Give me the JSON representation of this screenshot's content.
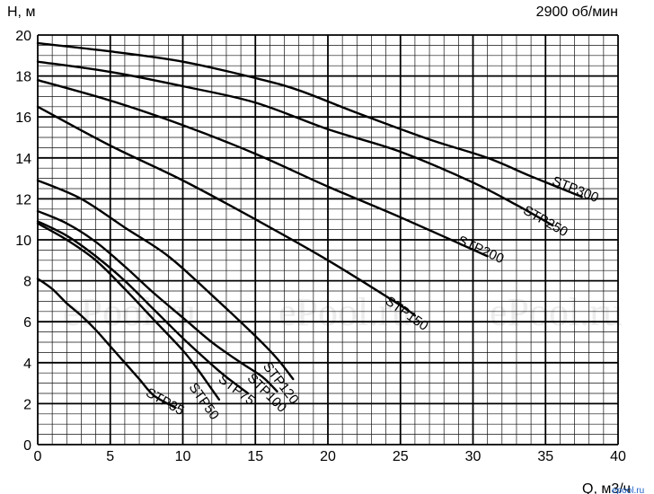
{
  "chart_data": {
    "type": "line",
    "title": "",
    "top_right_label": "2900 об/мин",
    "ylabel": "H, м",
    "xlabel": "Q, м3/ч",
    "xlim": [
      0,
      40
    ],
    "ylim": [
      0,
      20
    ],
    "x_ticks": [
      0,
      5,
      10,
      15,
      20,
      25,
      30,
      35,
      40
    ],
    "y_ticks": [
      0,
      2,
      4,
      6,
      8,
      10,
      12,
      14,
      16,
      18,
      20
    ],
    "grid": true,
    "legend": "none",
    "series": [
      {
        "name": "STP35",
        "x": [
          0,
          1,
          2,
          3,
          4,
          5,
          6,
          7,
          8,
          9.5
        ],
        "y": [
          8.1,
          7.6,
          6.9,
          6.3,
          5.6,
          4.8,
          4.0,
          3.2,
          2.4,
          1.8
        ]
      },
      {
        "name": "STP50",
        "x": [
          0,
          2,
          4,
          6,
          8,
          10,
          11,
          12,
          12.5
        ],
        "y": [
          10.8,
          10.0,
          9.0,
          7.6,
          6.1,
          4.6,
          3.7,
          2.7,
          2.2
        ]
      },
      {
        "name": "STP75",
        "x": [
          0,
          2,
          4,
          6,
          8,
          10,
          12,
          13,
          14.5
        ],
        "y": [
          10.9,
          10.2,
          9.2,
          8.0,
          6.6,
          5.2,
          3.9,
          3.3,
          2.5
        ]
      },
      {
        "name": "STP100",
        "x": [
          0,
          2,
          4,
          6,
          8,
          10,
          12,
          14,
          15.5,
          16.5
        ],
        "y": [
          11.4,
          10.8,
          9.9,
          8.7,
          7.4,
          6.2,
          5.0,
          4.0,
          3.3,
          2.6
        ]
      },
      {
        "name": "STP120",
        "x": [
          0,
          3,
          6,
          9,
          12,
          15,
          16.5,
          17.6
        ],
        "y": [
          12.9,
          12.0,
          10.6,
          9.2,
          7.3,
          5.3,
          4.2,
          3.2
        ]
      },
      {
        "name": "STP150",
        "x": [
          0,
          5,
          10,
          15,
          20,
          25,
          26
        ],
        "y": [
          16.5,
          14.6,
          12.9,
          11.0,
          9.0,
          6.8,
          6.3
        ]
      },
      {
        "name": "STP200",
        "x": [
          0,
          5,
          10,
          15,
          20,
          25,
          31
        ],
        "y": [
          17.8,
          16.8,
          15.6,
          14.2,
          12.6,
          11.1,
          9.2
        ]
      },
      {
        "name": "STP250",
        "x": [
          0,
          5,
          10,
          15,
          20,
          25,
          30,
          33,
          35.5
        ],
        "y": [
          18.7,
          18.2,
          17.5,
          16.7,
          15.4,
          14.3,
          12.8,
          11.7,
          10.7
        ]
      },
      {
        "name": "STP300",
        "x": [
          0,
          5,
          10,
          15,
          18,
          22,
          27,
          31,
          34,
          37.5
        ],
        "y": [
          19.6,
          19.2,
          18.7,
          17.9,
          17.3,
          16.2,
          14.9,
          14.0,
          13.1,
          12.1
        ]
      }
    ]
  },
  "watermark": {
    "text": "ePool.ru",
    "small_logo": "epool.ru"
  }
}
